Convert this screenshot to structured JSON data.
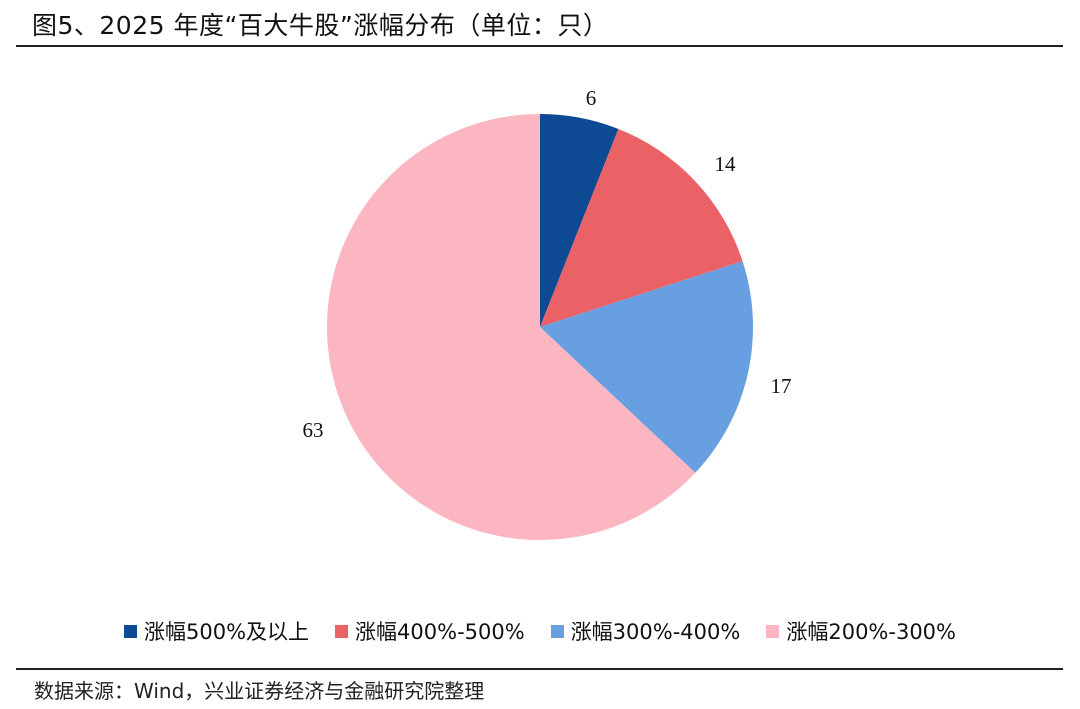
{
  "header": {
    "title": "图5、2025 年度“百大牛股”涨幅分布（单位：只）"
  },
  "chart_data": {
    "type": "pie",
    "title": "图5、2025 年度“百大牛股”涨幅分布（单位：只）",
    "unit": "只",
    "categories": [
      "涨幅500%及以上",
      "涨幅400%-500%",
      "涨幅300%-400%",
      "涨幅200%-300%"
    ],
    "values": [
      6,
      14,
      17,
      63
    ],
    "colors": [
      "#0d4a93",
      "#ea6166",
      "#679fe0",
      "#fbb6c2"
    ],
    "data_labels": [
      "6",
      "14",
      "17",
      "63"
    ],
    "start_angle_deg": 0,
    "direction": "clockwise",
    "legend_position": "bottom",
    "grid": false
  },
  "legend": {
    "items": [
      {
        "label": "涨幅500%及以上",
        "color": "#0d4a93"
      },
      {
        "label": "涨幅400%-500%",
        "color": "#ea6166"
      },
      {
        "label": "涨幅300%-400%",
        "color": "#679fe0"
      },
      {
        "label": "涨幅200%-300%",
        "color": "#fbb6c2"
      }
    ]
  },
  "footer": {
    "source": "数据来源：Wind，兴业证券经济与金融研究院整理"
  }
}
